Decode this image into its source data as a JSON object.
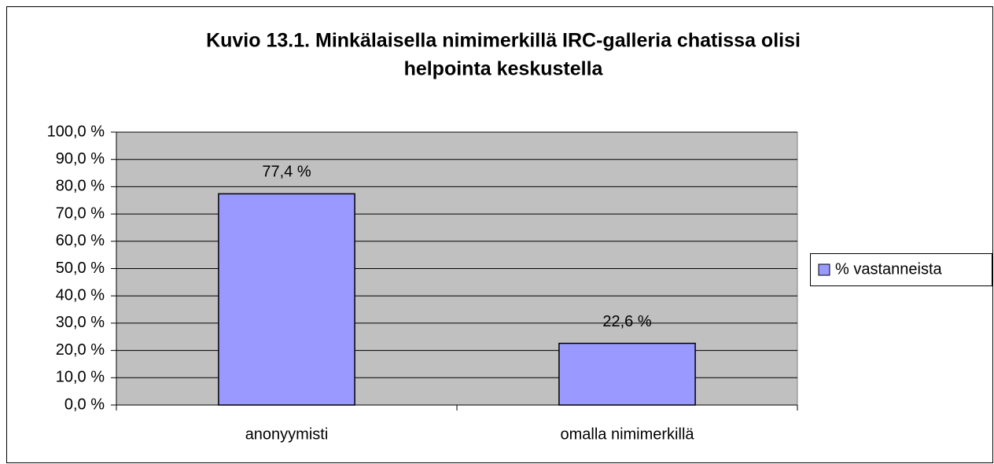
{
  "chart_data": {
    "type": "bar",
    "title": [
      "Kuvio 13.1. Minkälaisella nimimerkillä IRC-galleria chatissa olisi",
      "helpointa keskustella"
    ],
    "categories": [
      "anonyymisti",
      "omalla nimimerkillä"
    ],
    "series": [
      {
        "name": "% vastanneista",
        "color": "#9999ff",
        "values": [
          77.4,
          22.6
        ],
        "value_labels": [
          "77,4 %",
          "22,6 %"
        ]
      }
    ],
    "ylim": [
      0,
      100
    ],
    "yticks": [
      {
        "value": 0,
        "label": "0,0 %"
      },
      {
        "value": 10,
        "label": "10,0 %"
      },
      {
        "value": 20,
        "label": "20,0 %"
      },
      {
        "value": 30,
        "label": "30,0 %"
      },
      {
        "value": 40,
        "label": "40,0 %"
      },
      {
        "value": 50,
        "label": "50,0 %"
      },
      {
        "value": 60,
        "label": "60,0 %"
      },
      {
        "value": 70,
        "label": "70,0 %"
      },
      {
        "value": 80,
        "label": "80,0 %"
      },
      {
        "value": 90,
        "label": "90,0 %"
      },
      {
        "value": 100,
        "label": "100,0 %"
      }
    ],
    "grid": true,
    "legend": "right",
    "plot_background": "#c0c0c0"
  }
}
